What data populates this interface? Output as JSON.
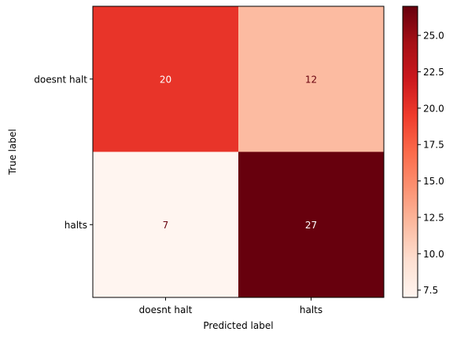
{
  "chart_data": {
    "type": "heatmap",
    "title": "",
    "xlabel": "Predicted label",
    "ylabel": "True label",
    "x_categories": [
      "doesnt halt",
      "halts"
    ],
    "y_categories": [
      "doesnt halt",
      "halts"
    ],
    "values": [
      [
        20,
        12
      ],
      [
        7,
        27
      ]
    ],
    "cell_labels": [
      [
        "20",
        "12"
      ],
      [
        "7",
        "27"
      ]
    ],
    "colormap": "Reds",
    "colorbar": {
      "range": [
        7,
        27
      ],
      "ticks": [
        7.5,
        10.0,
        12.5,
        15.0,
        17.5,
        20.0,
        22.5,
        25.0
      ],
      "tick_labels": [
        "7.5",
        "10.0",
        "12.5",
        "15.0",
        "17.5",
        "20.0",
        "22.5",
        "25.0"
      ]
    },
    "grid": false
  }
}
